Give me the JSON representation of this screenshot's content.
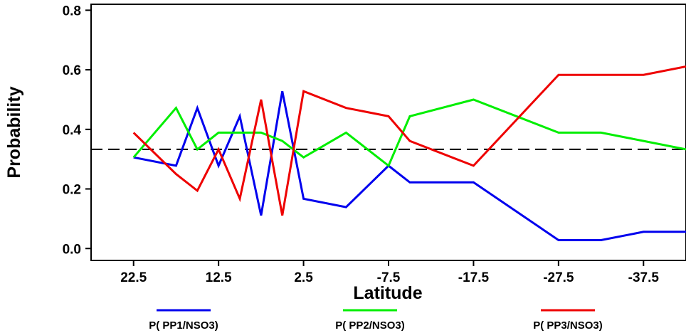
{
  "chart_data": {
    "type": "line",
    "xlabel": "Latitude",
    "ylabel": "Probability",
    "xlim": [
      27.5,
      -42.5
    ],
    "ylim": [
      -0.04,
      0.82
    ],
    "x_tick_values": [
      22.5,
      12.5,
      2.5,
      -7.5,
      -17.5,
      -27.5,
      -37.5
    ],
    "x_tick_labels": [
      "22.5",
      "12.5",
      "2.5",
      "-7.5",
      "-17.5",
      "-27.5",
      "-37.5"
    ],
    "y_tick_values": [
      0.0,
      0.2,
      0.4,
      0.6,
      0.8
    ],
    "y_tick_labels": [
      "0.0",
      "0.2",
      "0.4",
      "0.6",
      "0.8"
    ],
    "grid": false,
    "legend_position": "bottom",
    "reference_line": {
      "y": 0.333,
      "style": "dashed",
      "color": "#000000"
    },
    "x": [
      22.5,
      17.5,
      15,
      12.5,
      10,
      7.5,
      5,
      2.5,
      -2.5,
      -7.5,
      -10,
      -17.5,
      -27.5,
      -32.5,
      -37.5,
      -42.5
    ],
    "series": [
      {
        "name": "P( PP1/NSO3)",
        "color": "#0000ee",
        "values": [
          0.306,
          0.278,
          0.472,
          0.278,
          0.444,
          0.111,
          0.528,
          0.167,
          0.139,
          0.278,
          0.222,
          0.222,
          0.028,
          0.028,
          0.056,
          0.056
        ]
      },
      {
        "name": "P( PP2/NSO3)",
        "color": "#00ee00",
        "values": [
          0.306,
          0.472,
          0.333,
          0.389,
          0.389,
          0.389,
          0.361,
          0.306,
          0.389,
          0.278,
          0.444,
          0.5,
          0.389,
          0.389,
          0.361,
          0.333
        ]
      },
      {
        "name": "P( PP3/NSO3)",
        "color": "#ee0000",
        "values": [
          0.389,
          0.25,
          0.194,
          0.333,
          0.167,
          0.5,
          0.111,
          0.528,
          0.472,
          0.444,
          0.361,
          0.278,
          0.583,
          0.583,
          0.583,
          0.611
        ]
      }
    ]
  }
}
